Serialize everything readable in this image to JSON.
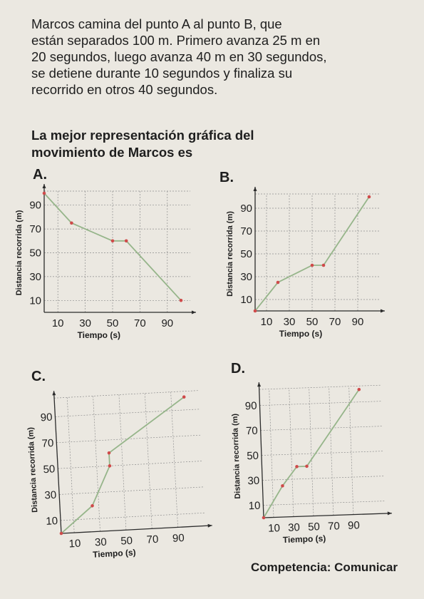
{
  "problem": {
    "lines": [
      "Marcos camina del punto A al punto B, que",
      "están separados 100 m. Primero avanza 25 m en",
      "20 segundos, luego avanza 40 m en 30 segundos,",
      "se detiene durante 10 segundos y finaliza su",
      "recorrido en otros 40 segundos."
    ]
  },
  "question": {
    "lines": [
      "La mejor representación gráfica del",
      "movimiento de Marcos es"
    ]
  },
  "options": [
    {
      "label": "A.",
      "chart_data": {
        "type": "line",
        "xlabel": "Tiempo (s)",
        "ylabel": "Distancia recorrida (m)",
        "x_ticks": [
          10,
          30,
          50,
          70,
          90
        ],
        "y_ticks": [
          10,
          30,
          50,
          70,
          90
        ],
        "xlim": [
          0,
          100
        ],
        "ylim": [
          0,
          100
        ],
        "grid": true,
        "x": [
          0,
          20,
          50,
          60,
          100
        ],
        "y": [
          100,
          75,
          60,
          60,
          10
        ]
      }
    },
    {
      "label": "B.",
      "chart_data": {
        "type": "line",
        "xlabel": "Tiempo (s)",
        "ylabel": "Distancia recorrida (m)",
        "x_ticks": [
          10,
          30,
          50,
          70,
          90
        ],
        "y_ticks": [
          10,
          30,
          50,
          70,
          90
        ],
        "xlim": [
          0,
          100
        ],
        "ylim": [
          0,
          100
        ],
        "grid": true,
        "x": [
          0,
          20,
          50,
          60,
          100
        ],
        "y": [
          0,
          25,
          40,
          40,
          100
        ]
      }
    },
    {
      "label": "C.",
      "chart_data": {
        "type": "line",
        "xlabel": "Tiempo (s)",
        "ylabel": "Distancia recorrida (m)",
        "x_ticks": [
          10,
          30,
          50,
          70,
          90
        ],
        "y_ticks": [
          10,
          30,
          50,
          70,
          90
        ],
        "xlim": [
          0,
          100
        ],
        "ylim": [
          0,
          100
        ],
        "grid": true,
        "x": [
          0,
          25,
          40,
          40,
          100
        ],
        "y": [
          0,
          20,
          50,
          60,
          100
        ]
      }
    },
    {
      "label": "D.",
      "chart_data": {
        "type": "line",
        "xlabel": "Tiempo (s)",
        "ylabel": "Distancia recorrida (m)",
        "x_ticks": [
          10,
          30,
          50,
          70,
          90
        ],
        "y_ticks": [
          10,
          30,
          50,
          70,
          90
        ],
        "xlim": [
          0,
          100
        ],
        "ylim": [
          0,
          100
        ],
        "grid": true,
        "x": [
          0,
          20,
          35,
          45,
          100
        ],
        "y": [
          0,
          25,
          40,
          40,
          100
        ]
      }
    }
  ],
  "footer": {
    "label": "Competencia:",
    "value": "Comunicar"
  },
  "colors": {
    "line": "#96b58a",
    "point": "#cf4a4a",
    "axis": "#2b2b2b",
    "grid": "#8d8d8d"
  }
}
